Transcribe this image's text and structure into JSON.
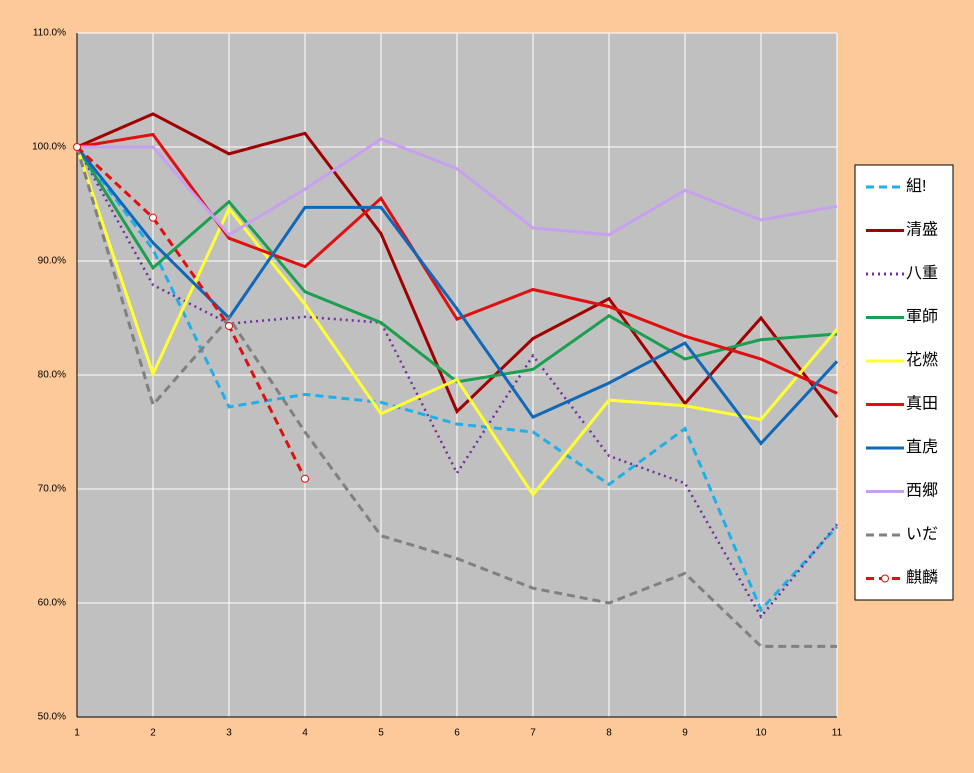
{
  "chart_data": {
    "type": "line",
    "x": [
      1,
      2,
      3,
      4,
      5,
      6,
      7,
      8,
      9,
      10,
      11
    ],
    "xlim": [
      1,
      11
    ],
    "xticks": [
      1,
      2,
      3,
      4,
      5,
      6,
      7,
      8,
      9,
      10,
      11
    ],
    "ylim": [
      50,
      110
    ],
    "yticks": [
      {
        "value": 50,
        "label": "50.0%"
      },
      {
        "value": 60,
        "label": "60.0%"
      },
      {
        "value": 70,
        "label": "70.0%"
      },
      {
        "value": 80,
        "label": "80.0%"
      },
      {
        "value": 90,
        "label": "90.0%"
      },
      {
        "value": 100,
        "label": "100.0%"
      },
      {
        "value": 110,
        "label": "110.0%"
      }
    ],
    "grid": true,
    "legend": "right",
    "series": [
      {
        "name": "組!",
        "color": "#1fb0e8",
        "style": "dashed",
        "values": [
          100,
          91,
          77.2,
          78.3,
          77.6,
          75.7,
          75.0,
          70.4,
          75.3,
          59.4,
          66.7
        ]
      },
      {
        "name": "清盛",
        "color": "#a00000",
        "style": "solid",
        "values": [
          100,
          102.9,
          99.4,
          101.2,
          92.4,
          76.8,
          83.2,
          86.7,
          77.5,
          85.0,
          76.3
        ]
      },
      {
        "name": "八重",
        "color": "#7030a0",
        "style": "dotted",
        "values": [
          100,
          87.9,
          84.5,
          85.1,
          84.6,
          71.4,
          81.7,
          72.9,
          70.5,
          58.8,
          66.9
        ]
      },
      {
        "name": "軍師",
        "color": "#1aa050",
        "style": "solid",
        "values": [
          100,
          89.4,
          95.2,
          87.3,
          84.6,
          79.4,
          80.5,
          85.2,
          81.4,
          83.1,
          83.6
        ]
      },
      {
        "name": "花燃",
        "color": "#ffff33",
        "style": "solid",
        "values": [
          100,
          80.1,
          94.6,
          86.2,
          76.6,
          79.6,
          69.5,
          77.8,
          77.3,
          76.1,
          84.0
        ]
      },
      {
        "name": "真田",
        "color": "#e01010",
        "style": "solid",
        "values": [
          100,
          101.1,
          92.0,
          89.5,
          95.5,
          84.9,
          87.5,
          86.0,
          83.4,
          81.4,
          78.4
        ]
      },
      {
        "name": "直虎",
        "color": "#1068b8",
        "style": "solid",
        "values": [
          100,
          91.6,
          85.0,
          94.7,
          94.7,
          85.8,
          76.3,
          79.3,
          82.8,
          74.0,
          81.2
        ]
      },
      {
        "name": "西郷",
        "color": "#c8a0f0",
        "style": "solid",
        "values": [
          100,
          100.0,
          92.3,
          96.3,
          100.7,
          98.1,
          92.9,
          92.3,
          96.2,
          93.6,
          94.8
        ]
      },
      {
        "name": "いだ",
        "color": "#808080",
        "style": "dashed",
        "values": [
          100,
          77.4,
          85.0,
          75.0,
          65.9,
          63.9,
          61.3,
          60.0,
          62.6,
          56.2,
          56.2
        ]
      },
      {
        "name": "麒麟",
        "color": "#e01010",
        "style": "dashed",
        "marker": true,
        "values": [
          100,
          93.8,
          84.3,
          70.9,
          null,
          null,
          null,
          null,
          null,
          null,
          null
        ]
      }
    ]
  }
}
